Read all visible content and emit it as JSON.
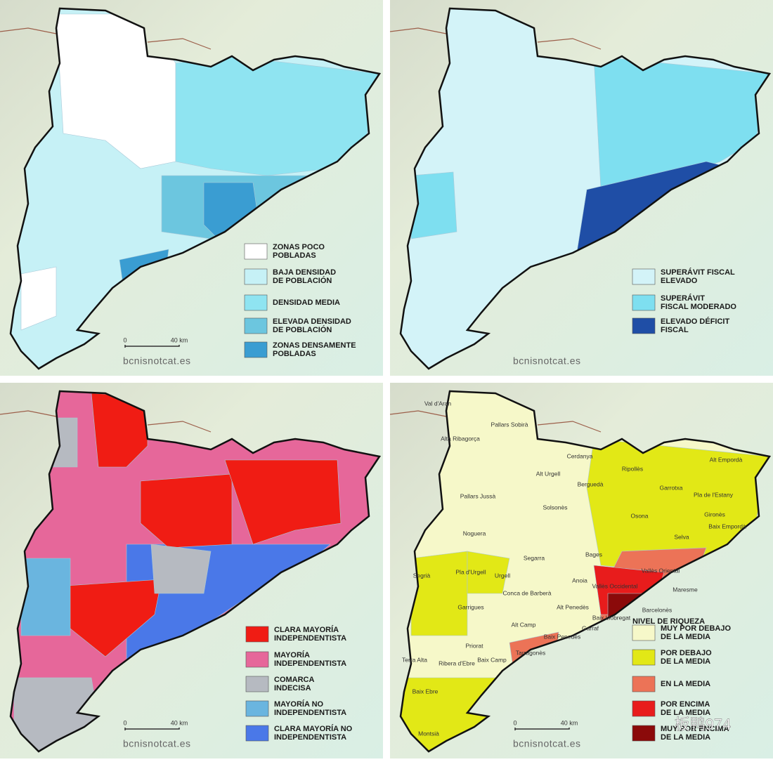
{
  "panels": [
    {
      "legend": {
        "items": [
          {
            "label": [
              "ZONAS POCO",
              "POBLADAS"
            ],
            "color": "#ffffff"
          },
          {
            "label": [
              "BAJA DENSIDAD",
              "DE POBLACIÓN"
            ],
            "color": "#c6f1f6"
          },
          {
            "label": [
              "DENSIDAD MEDIA"
            ],
            "color": "#8fe4f1"
          },
          {
            "label": [
              "ELEVADA DENSIDAD",
              "DE POBLACIÓN"
            ],
            "color": "#6cc6df"
          },
          {
            "label": [
              "ZONAS DENSAMENTE",
              "POBLADAS"
            ],
            "color": "#3a9dd2"
          }
        ]
      },
      "scale": {
        "start": "0",
        "end": "40 km"
      },
      "source": "bcnisnotcat.es"
    },
    {
      "legend": {
        "items": [
          {
            "label": [
              "SUPERÁVIT FISCAL",
              "ELEVADO"
            ],
            "color": "#d3f3f8"
          },
          {
            "label": [
              "SUPERÁVIT",
              "FISCAL MODERADO"
            ],
            "color": "#7edff0"
          },
          {
            "label": [
              "ELEVADO DÉFICIT",
              "FISCAL"
            ],
            "color": "#1f4ea6"
          }
        ]
      },
      "source": "bcnisnotcat.es"
    },
    {
      "legend": {
        "items": [
          {
            "label": [
              "CLARA MAYORÍA",
              "INDEPENDENTISTA"
            ],
            "color": "#f01c14"
          },
          {
            "label": [
              "MAYORÍA",
              "INDEPENDENTISTA"
            ],
            "color": "#e6679a"
          },
          {
            "label": [
              "COMARCA",
              "INDECISA"
            ],
            "color": "#b6bac1"
          },
          {
            "label": [
              "MAYORÍA NO",
              "INDEPENDENTISTA"
            ],
            "color": "#6ab5df"
          },
          {
            "label": [
              "CLARA MAYORÍA NO",
              "INDEPENDENTISTA"
            ],
            "color": "#4a78e8"
          }
        ]
      },
      "scale": {
        "start": "0",
        "end": "40 km"
      },
      "source": "bcnisnotcat.es"
    },
    {
      "legend": {
        "title": "NIVEL DE RIQUEZA",
        "items": [
          {
            "label": [
              "MUY POR DEBAJO",
              "DE LA MEDIA"
            ],
            "color": "#f6f8c9"
          },
          {
            "label": [
              "POR DEBAJO",
              "DE LA MEDIA"
            ],
            "color": "#e2e816"
          },
          {
            "label": [
              "EN LA MEDIA"
            ],
            "color": "#ec7357"
          },
          {
            "label": [
              "POR ENCIMA",
              "DE LA MEDIA"
            ],
            "color": "#e81c1c"
          },
          {
            "label": [
              "MUY POR ENCIMA",
              "DE LA MEDIA"
            ],
            "color": "#8b0a0a"
          }
        ]
      },
      "scale": {
        "start": "0",
        "end": "40 km"
      },
      "source": "bcnisnotcat.es",
      "labels": [
        "Val d'Aran",
        "Pallars Sobirà",
        "Alta Ribagorça",
        "Cerdanya",
        "Ripollès",
        "Alt Empordà",
        "Alt Urgell",
        "Berguedà",
        "Garrotxa",
        "Pla de l'Estany",
        "Pallars Jussà",
        "Solsonès",
        "Osona",
        "Gironès",
        "Baix Empordà",
        "Noguera",
        "Selva",
        "Bages",
        "Vallès Oriental",
        "Segarra",
        "Maresme",
        "Segrià",
        "Pla d'Urgell",
        "Urgell",
        "Anoia",
        "Vallès Occidental",
        "Conca de Barberà",
        "Garrigues",
        "Alt Penedès",
        "Barcelonès",
        "Baix Llobregat",
        "Alt Camp",
        "Garraf",
        "Baix Penedès",
        "Priorat",
        "Tarragonès",
        "Baix Camp",
        "Terra Alta",
        "Ribera d'Ebre",
        "Baix Ebre",
        "Montsià"
      ]
    }
  ],
  "watermark": "板鸭974"
}
